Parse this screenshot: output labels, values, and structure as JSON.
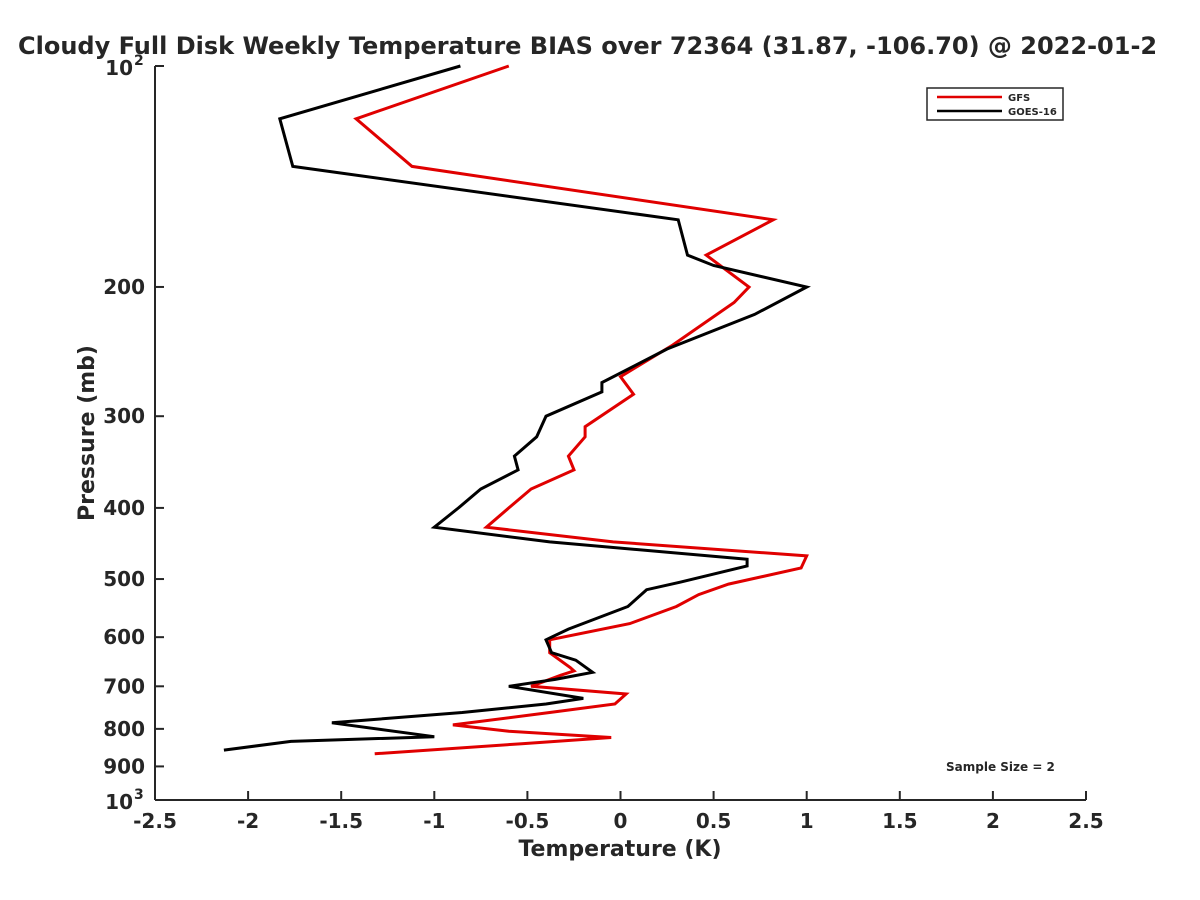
{
  "chart_data": {
    "type": "line",
    "title": "Cloudy Full Disk Weekly Temperature BIAS over 72364 (31.87, -106.70) @ 2022-01-2",
    "xlabel": "Temperature (K)",
    "ylabel": "Pressure (mb)",
    "xlim": [
      -2.5,
      2.5
    ],
    "ylim": [
      100,
      1000
    ],
    "y_scale": "log",
    "y_reversed": true,
    "grid": false,
    "legend_position": "top-right",
    "annotation": "Sample Size = 2",
    "x_ticks": [
      {
        "value": -2.5,
        "label": "-2.5"
      },
      {
        "value": -2,
        "label": "-2"
      },
      {
        "value": -1.5,
        "label": "-1.5"
      },
      {
        "value": -1,
        "label": "-1"
      },
      {
        "value": -0.5,
        "label": "-0.5"
      },
      {
        "value": 0,
        "label": "0"
      },
      {
        "value": 0.5,
        "label": "0.5"
      },
      {
        "value": 1,
        "label": "1"
      },
      {
        "value": 1.5,
        "label": "1.5"
      },
      {
        "value": 2,
        "label": "2"
      },
      {
        "value": 2.5,
        "label": "2.5"
      }
    ],
    "y_ticks": [
      {
        "value": 100,
        "base": "10",
        "exp": "2"
      },
      {
        "value": 200,
        "label": "200"
      },
      {
        "value": 300,
        "label": "300"
      },
      {
        "value": 400,
        "label": "400"
      },
      {
        "value": 500,
        "label": "500"
      },
      {
        "value": 600,
        "label": "600"
      },
      {
        "value": 700,
        "label": "700"
      },
      {
        "value": 800,
        "label": "800"
      },
      {
        "value": 900,
        "label": "900"
      },
      {
        "value": 1000,
        "base": "10",
        "exp": "3"
      }
    ],
    "series": [
      {
        "name": "GFS",
        "color": "#e00000",
        "points": [
          [
            -0.6,
            100
          ],
          [
            -1.42,
            118
          ],
          [
            -1.12,
            137
          ],
          [
            0.82,
            162
          ],
          [
            0.46,
            181
          ],
          [
            0.69,
            200
          ],
          [
            0.61,
            210
          ],
          [
            0.28,
            240
          ],
          [
            0.0,
            265
          ],
          [
            0.07,
            280
          ],
          [
            -0.19,
            310
          ],
          [
            -0.19,
            320
          ],
          [
            -0.28,
            340
          ],
          [
            -0.25,
            355
          ],
          [
            -0.48,
            377
          ],
          [
            -0.6,
            400
          ],
          [
            -0.72,
            425
          ],
          [
            -0.04,
            445
          ],
          [
            1.0,
            465
          ],
          [
            0.97,
            483
          ],
          [
            0.58,
            508
          ],
          [
            0.42,
            525
          ],
          [
            0.3,
            545
          ],
          [
            0.05,
            575
          ],
          [
            -0.38,
            605
          ],
          [
            -0.38,
            630
          ],
          [
            -0.27,
            660
          ],
          [
            -0.25,
            667
          ],
          [
            -0.32,
            676
          ],
          [
            -0.48,
            700
          ],
          [
            0.03,
            717
          ],
          [
            -0.03,
            740
          ],
          [
            -0.38,
            760
          ],
          [
            -0.9,
            790
          ],
          [
            -0.6,
            806
          ],
          [
            -0.05,
            822
          ],
          [
            -0.53,
            838
          ],
          [
            -1.32,
            865
          ]
        ]
      },
      {
        "name": "GOES-16",
        "color": "#000000",
        "points": [
          [
            -0.86,
            100
          ],
          [
            -1.83,
            118
          ],
          [
            -1.76,
            137
          ],
          [
            0.31,
            162
          ],
          [
            0.36,
            181
          ],
          [
            0.5,
            187
          ],
          [
            1.0,
            200
          ],
          [
            0.72,
            218
          ],
          [
            0.25,
            243
          ],
          [
            -0.1,
            270
          ],
          [
            -0.1,
            278
          ],
          [
            -0.4,
            300
          ],
          [
            -0.45,
            320
          ],
          [
            -0.57,
            340
          ],
          [
            -0.55,
            355
          ],
          [
            -0.75,
            377
          ],
          [
            -0.87,
            400
          ],
          [
            -1.0,
            425
          ],
          [
            -0.38,
            445
          ],
          [
            0.68,
            470
          ],
          [
            0.68,
            480
          ],
          [
            0.32,
            505
          ],
          [
            0.14,
            517
          ],
          [
            0.04,
            545
          ],
          [
            -0.28,
            585
          ],
          [
            -0.4,
            605
          ],
          [
            -0.37,
            630
          ],
          [
            -0.24,
            645
          ],
          [
            -0.15,
            670
          ],
          [
            -0.35,
            685
          ],
          [
            -0.6,
            700
          ],
          [
            -0.2,
            727
          ],
          [
            -0.4,
            740
          ],
          [
            -0.85,
            760
          ],
          [
            -1.55,
            785
          ],
          [
            -1.0,
            820
          ],
          [
            -1.77,
            832
          ],
          [
            -2.13,
            855
          ]
        ]
      }
    ]
  }
}
